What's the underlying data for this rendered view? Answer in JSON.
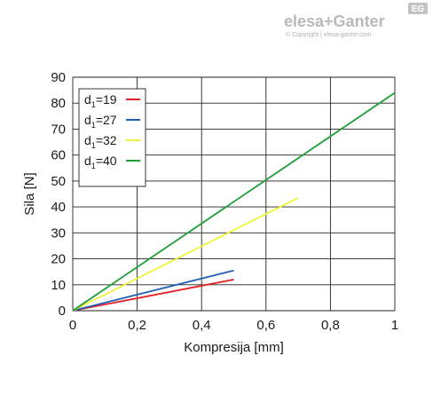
{
  "brand": {
    "name": "elesa+Ganter",
    "badge": "EG",
    "copyright": "© Copyright | elesa-ganter.com"
  },
  "chart_data": {
    "type": "line",
    "title": "",
    "xlabel": "Kompresija [mm]",
    "ylabel": "Sila [N]",
    "xlim": [
      0,
      1
    ],
    "ylim": [
      0,
      90
    ],
    "x_ticks": [
      0,
      0.2,
      0.4,
      0.6,
      0.8,
      1
    ],
    "x_tick_labels": [
      "0",
      "0,2",
      "0,4",
      "0,6",
      "0,8",
      "1"
    ],
    "y_ticks": [
      0,
      10,
      20,
      30,
      40,
      50,
      60,
      70,
      80,
      90
    ],
    "y_tick_labels": [
      "0",
      "10",
      "20",
      "30",
      "40",
      "50",
      "60",
      "70",
      "80",
      "90"
    ],
    "grid": true,
    "legend_position": "top-left",
    "series": [
      {
        "name": "d1=19",
        "label_main": "d",
        "label_sub": "1",
        "label_rest": "=19",
        "color": "#e41e26",
        "x": [
          0,
          0.5
        ],
        "y": [
          0,
          12
        ]
      },
      {
        "name": "d1=27",
        "label_main": "d",
        "label_sub": "1",
        "label_rest": "=27",
        "color": "#1f5fb4",
        "x": [
          0,
          0.5
        ],
        "y": [
          0,
          15.5
        ]
      },
      {
        "name": "d1=32",
        "label_main": "d",
        "label_sub": "1",
        "label_rest": "=32",
        "color": "#f2f23a",
        "x": [
          0,
          0.7
        ],
        "y": [
          0,
          43.5
        ]
      },
      {
        "name": "d1=40",
        "label_main": "d",
        "label_sub": "1",
        "label_rest": "=40",
        "color": "#1f9e3a",
        "x": [
          0,
          1
        ],
        "y": [
          0,
          84
        ]
      }
    ]
  }
}
